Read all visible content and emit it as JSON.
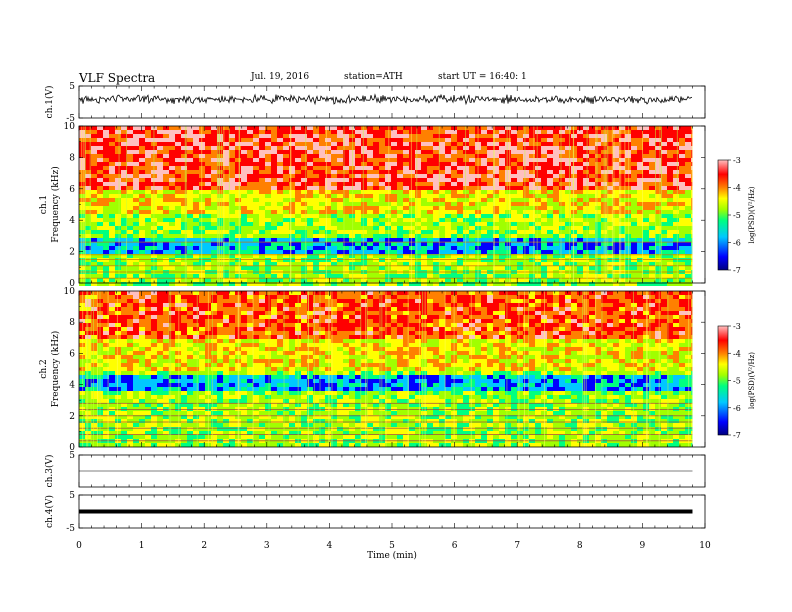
{
  "header": {
    "title": "VLF  Spectra",
    "date": "Jul.  19,  2016",
    "station": "station=ATH",
    "start_time": "start  UT  =   16:40: 1"
  },
  "chart_data": [
    {
      "type": "line",
      "panel": "ch1-waveform",
      "ylabel": "ch.1(V)",
      "ylim": [
        -5,
        5
      ],
      "yticks": [
        "5",
        "-5"
      ],
      "description_series": "noisy waveform centered slightly above 0 V"
    },
    {
      "type": "heatmap",
      "panel": "ch1-spectrogram",
      "ylabel_line1": "ch.1",
      "ylabel_line2": "Frequency  (kHz)",
      "ylim": [
        0,
        10
      ],
      "yticks": [
        "0",
        "2",
        "4",
        "6",
        "8",
        "10"
      ],
      "colorbar": {
        "label": "log(PSD)(V²/Hz)",
        "range": [
          -7,
          -3
        ],
        "ticks": [
          "-3",
          "-4",
          "-5",
          "-6",
          "-7"
        ],
        "colors": [
          "#000080",
          "#0000ff",
          "#00c8ff",
          "#00ff80",
          "#a0ff00",
          "#ffff00",
          "#ff8000",
          "#ff0000",
          "#ffc0c0"
        ]
      },
      "pattern": "red (high PSD) above about 5-6 kHz, green/yellow 3-6 kHz, cyan/blue band near 2-3 kHz, horizontal lines below 2 kHz"
    },
    {
      "type": "heatmap",
      "panel": "ch2-spectrogram",
      "ylabel_line1": "ch.2",
      "ylabel_line2": "Frequency  (kHz)",
      "ylim": [
        0,
        10
      ],
      "yticks": [
        "0",
        "2",
        "4",
        "6",
        "8",
        "10"
      ],
      "colorbar": {
        "label": "log(PSD)(V²/Hz)",
        "range": [
          -7,
          -3
        ],
        "ticks": [
          "-3",
          "-4",
          "-5",
          "-6",
          "-7"
        ]
      },
      "pattern": "red patches above about 6-7 kHz, green/yellow mid-range, blue band near 4.3 kHz, horizontal lines below 3 kHz"
    },
    {
      "type": "line",
      "panel": "ch3-waveform",
      "ylabel": "ch.3(V)",
      "ylim": [
        -5,
        5
      ],
      "yticks": [
        "5"
      ],
      "description_series": "flat line near 0 V"
    },
    {
      "type": "line",
      "panel": "ch4-waveform",
      "ylabel": "ch.4(V)",
      "ylim": [
        -5,
        5
      ],
      "yticks": [
        "5",
        "-5"
      ],
      "description_series": "thick flat line near 0 V"
    }
  ],
  "x_axis": {
    "xlabel": "Time  (min)",
    "xlim": [
      0,
      10
    ],
    "data_end": 9.8,
    "ticks": [
      "0",
      "1",
      "2",
      "3",
      "4",
      "5",
      "6",
      "7",
      "8",
      "9",
      "10"
    ]
  }
}
